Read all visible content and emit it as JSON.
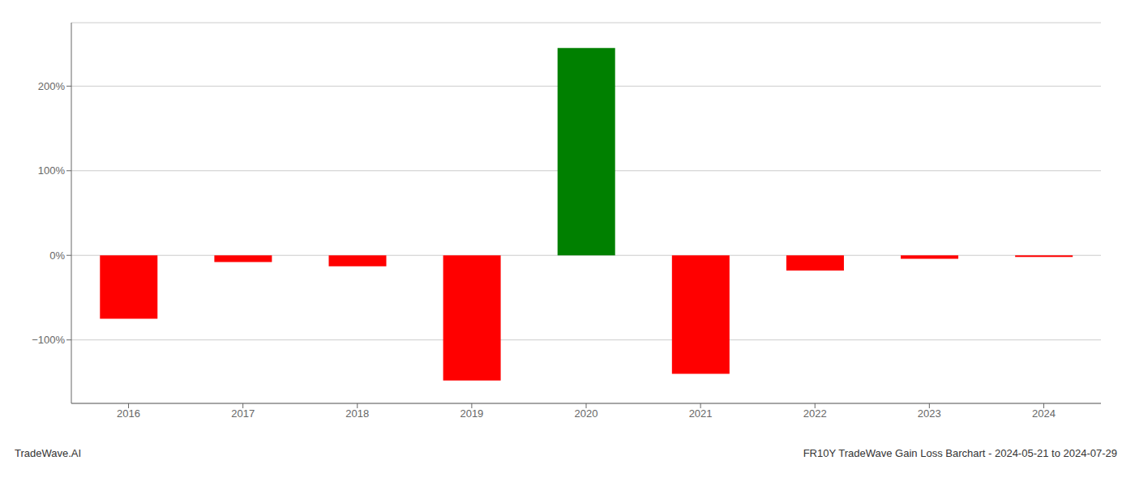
{
  "chart_data": {
    "type": "bar",
    "categories": [
      "2016",
      "2017",
      "2018",
      "2019",
      "2020",
      "2021",
      "2022",
      "2023",
      "2024"
    ],
    "values": [
      -75,
      -8,
      -13,
      -148,
      245,
      -140,
      -18,
      -4,
      -2
    ],
    "colors": [
      "#ff0000",
      "#ff0000",
      "#ff0000",
      "#ff0000",
      "#008000",
      "#ff0000",
      "#ff0000",
      "#ff0000",
      "#ff0000"
    ],
    "ylim": [
      -175,
      275
    ],
    "yticks": [
      {
        "value": -100,
        "label": "−100%"
      },
      {
        "value": 0,
        "label": "0%"
      },
      {
        "value": 100,
        "label": "100%"
      },
      {
        "value": 200,
        "label": "200%"
      }
    ],
    "grid": true,
    "annotations": [
      "TradeWave.AI",
      "FR10Y TradeWave Gain Loss Barchart - 2024-05-21 to 2024-07-29"
    ]
  }
}
